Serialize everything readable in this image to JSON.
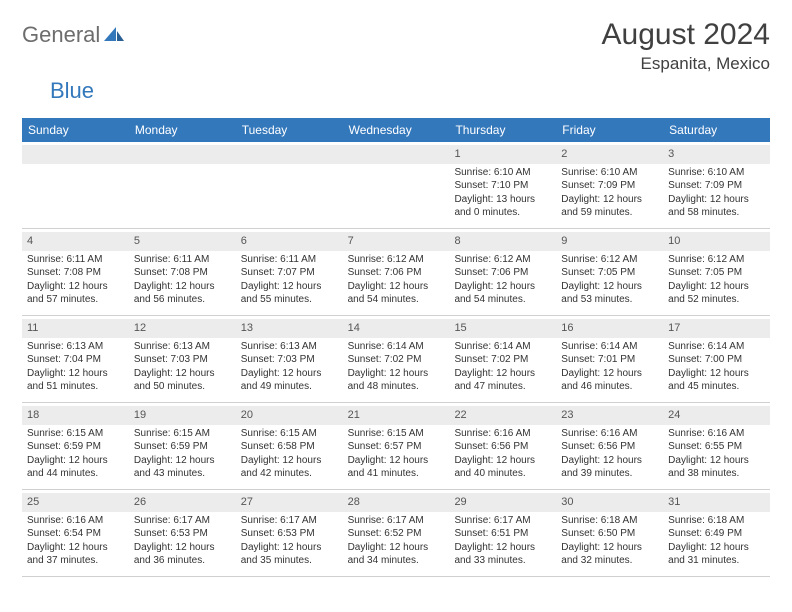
{
  "brand": {
    "part1": "General",
    "part2": "Blue"
  },
  "title": "August 2024",
  "location": "Espanita, Mexico",
  "colors": {
    "header_bg": "#3478bc",
    "header_text": "#ffffff",
    "daynum_bg": "#ececec",
    "body_text": "#333333",
    "title_text": "#404040",
    "logo_gray": "#6d6d6d",
    "logo_blue": "#3478bc",
    "border": "#d0d0d0",
    "page_bg": "#ffffff"
  },
  "dow": [
    "Sunday",
    "Monday",
    "Tuesday",
    "Wednesday",
    "Thursday",
    "Friday",
    "Saturday"
  ],
  "weeks": [
    [
      null,
      null,
      null,
      null,
      {
        "n": "1",
        "sr": "Sunrise: 6:10 AM",
        "ss": "Sunset: 7:10 PM",
        "d1": "Daylight: 13 hours",
        "d2": "and 0 minutes."
      },
      {
        "n": "2",
        "sr": "Sunrise: 6:10 AM",
        "ss": "Sunset: 7:09 PM",
        "d1": "Daylight: 12 hours",
        "d2": "and 59 minutes."
      },
      {
        "n": "3",
        "sr": "Sunrise: 6:10 AM",
        "ss": "Sunset: 7:09 PM",
        "d1": "Daylight: 12 hours",
        "d2": "and 58 minutes."
      }
    ],
    [
      {
        "n": "4",
        "sr": "Sunrise: 6:11 AM",
        "ss": "Sunset: 7:08 PM",
        "d1": "Daylight: 12 hours",
        "d2": "and 57 minutes."
      },
      {
        "n": "5",
        "sr": "Sunrise: 6:11 AM",
        "ss": "Sunset: 7:08 PM",
        "d1": "Daylight: 12 hours",
        "d2": "and 56 minutes."
      },
      {
        "n": "6",
        "sr": "Sunrise: 6:11 AM",
        "ss": "Sunset: 7:07 PM",
        "d1": "Daylight: 12 hours",
        "d2": "and 55 minutes."
      },
      {
        "n": "7",
        "sr": "Sunrise: 6:12 AM",
        "ss": "Sunset: 7:06 PM",
        "d1": "Daylight: 12 hours",
        "d2": "and 54 minutes."
      },
      {
        "n": "8",
        "sr": "Sunrise: 6:12 AM",
        "ss": "Sunset: 7:06 PM",
        "d1": "Daylight: 12 hours",
        "d2": "and 54 minutes."
      },
      {
        "n": "9",
        "sr": "Sunrise: 6:12 AM",
        "ss": "Sunset: 7:05 PM",
        "d1": "Daylight: 12 hours",
        "d2": "and 53 minutes."
      },
      {
        "n": "10",
        "sr": "Sunrise: 6:12 AM",
        "ss": "Sunset: 7:05 PM",
        "d1": "Daylight: 12 hours",
        "d2": "and 52 minutes."
      }
    ],
    [
      {
        "n": "11",
        "sr": "Sunrise: 6:13 AM",
        "ss": "Sunset: 7:04 PM",
        "d1": "Daylight: 12 hours",
        "d2": "and 51 minutes."
      },
      {
        "n": "12",
        "sr": "Sunrise: 6:13 AM",
        "ss": "Sunset: 7:03 PM",
        "d1": "Daylight: 12 hours",
        "d2": "and 50 minutes."
      },
      {
        "n": "13",
        "sr": "Sunrise: 6:13 AM",
        "ss": "Sunset: 7:03 PM",
        "d1": "Daylight: 12 hours",
        "d2": "and 49 minutes."
      },
      {
        "n": "14",
        "sr": "Sunrise: 6:14 AM",
        "ss": "Sunset: 7:02 PM",
        "d1": "Daylight: 12 hours",
        "d2": "and 48 minutes."
      },
      {
        "n": "15",
        "sr": "Sunrise: 6:14 AM",
        "ss": "Sunset: 7:02 PM",
        "d1": "Daylight: 12 hours",
        "d2": "and 47 minutes."
      },
      {
        "n": "16",
        "sr": "Sunrise: 6:14 AM",
        "ss": "Sunset: 7:01 PM",
        "d1": "Daylight: 12 hours",
        "d2": "and 46 minutes."
      },
      {
        "n": "17",
        "sr": "Sunrise: 6:14 AM",
        "ss": "Sunset: 7:00 PM",
        "d1": "Daylight: 12 hours",
        "d2": "and 45 minutes."
      }
    ],
    [
      {
        "n": "18",
        "sr": "Sunrise: 6:15 AM",
        "ss": "Sunset: 6:59 PM",
        "d1": "Daylight: 12 hours",
        "d2": "and 44 minutes."
      },
      {
        "n": "19",
        "sr": "Sunrise: 6:15 AM",
        "ss": "Sunset: 6:59 PM",
        "d1": "Daylight: 12 hours",
        "d2": "and 43 minutes."
      },
      {
        "n": "20",
        "sr": "Sunrise: 6:15 AM",
        "ss": "Sunset: 6:58 PM",
        "d1": "Daylight: 12 hours",
        "d2": "and 42 minutes."
      },
      {
        "n": "21",
        "sr": "Sunrise: 6:15 AM",
        "ss": "Sunset: 6:57 PM",
        "d1": "Daylight: 12 hours",
        "d2": "and 41 minutes."
      },
      {
        "n": "22",
        "sr": "Sunrise: 6:16 AM",
        "ss": "Sunset: 6:56 PM",
        "d1": "Daylight: 12 hours",
        "d2": "and 40 minutes."
      },
      {
        "n": "23",
        "sr": "Sunrise: 6:16 AM",
        "ss": "Sunset: 6:56 PM",
        "d1": "Daylight: 12 hours",
        "d2": "and 39 minutes."
      },
      {
        "n": "24",
        "sr": "Sunrise: 6:16 AM",
        "ss": "Sunset: 6:55 PM",
        "d1": "Daylight: 12 hours",
        "d2": "and 38 minutes."
      }
    ],
    [
      {
        "n": "25",
        "sr": "Sunrise: 6:16 AM",
        "ss": "Sunset: 6:54 PM",
        "d1": "Daylight: 12 hours",
        "d2": "and 37 minutes."
      },
      {
        "n": "26",
        "sr": "Sunrise: 6:17 AM",
        "ss": "Sunset: 6:53 PM",
        "d1": "Daylight: 12 hours",
        "d2": "and 36 minutes."
      },
      {
        "n": "27",
        "sr": "Sunrise: 6:17 AM",
        "ss": "Sunset: 6:53 PM",
        "d1": "Daylight: 12 hours",
        "d2": "and 35 minutes."
      },
      {
        "n": "28",
        "sr": "Sunrise: 6:17 AM",
        "ss": "Sunset: 6:52 PM",
        "d1": "Daylight: 12 hours",
        "d2": "and 34 minutes."
      },
      {
        "n": "29",
        "sr": "Sunrise: 6:17 AM",
        "ss": "Sunset: 6:51 PM",
        "d1": "Daylight: 12 hours",
        "d2": "and 33 minutes."
      },
      {
        "n": "30",
        "sr": "Sunrise: 6:18 AM",
        "ss": "Sunset: 6:50 PM",
        "d1": "Daylight: 12 hours",
        "d2": "and 32 minutes."
      },
      {
        "n": "31",
        "sr": "Sunrise: 6:18 AM",
        "ss": "Sunset: 6:49 PM",
        "d1": "Daylight: 12 hours",
        "d2": "and 31 minutes."
      }
    ]
  ]
}
